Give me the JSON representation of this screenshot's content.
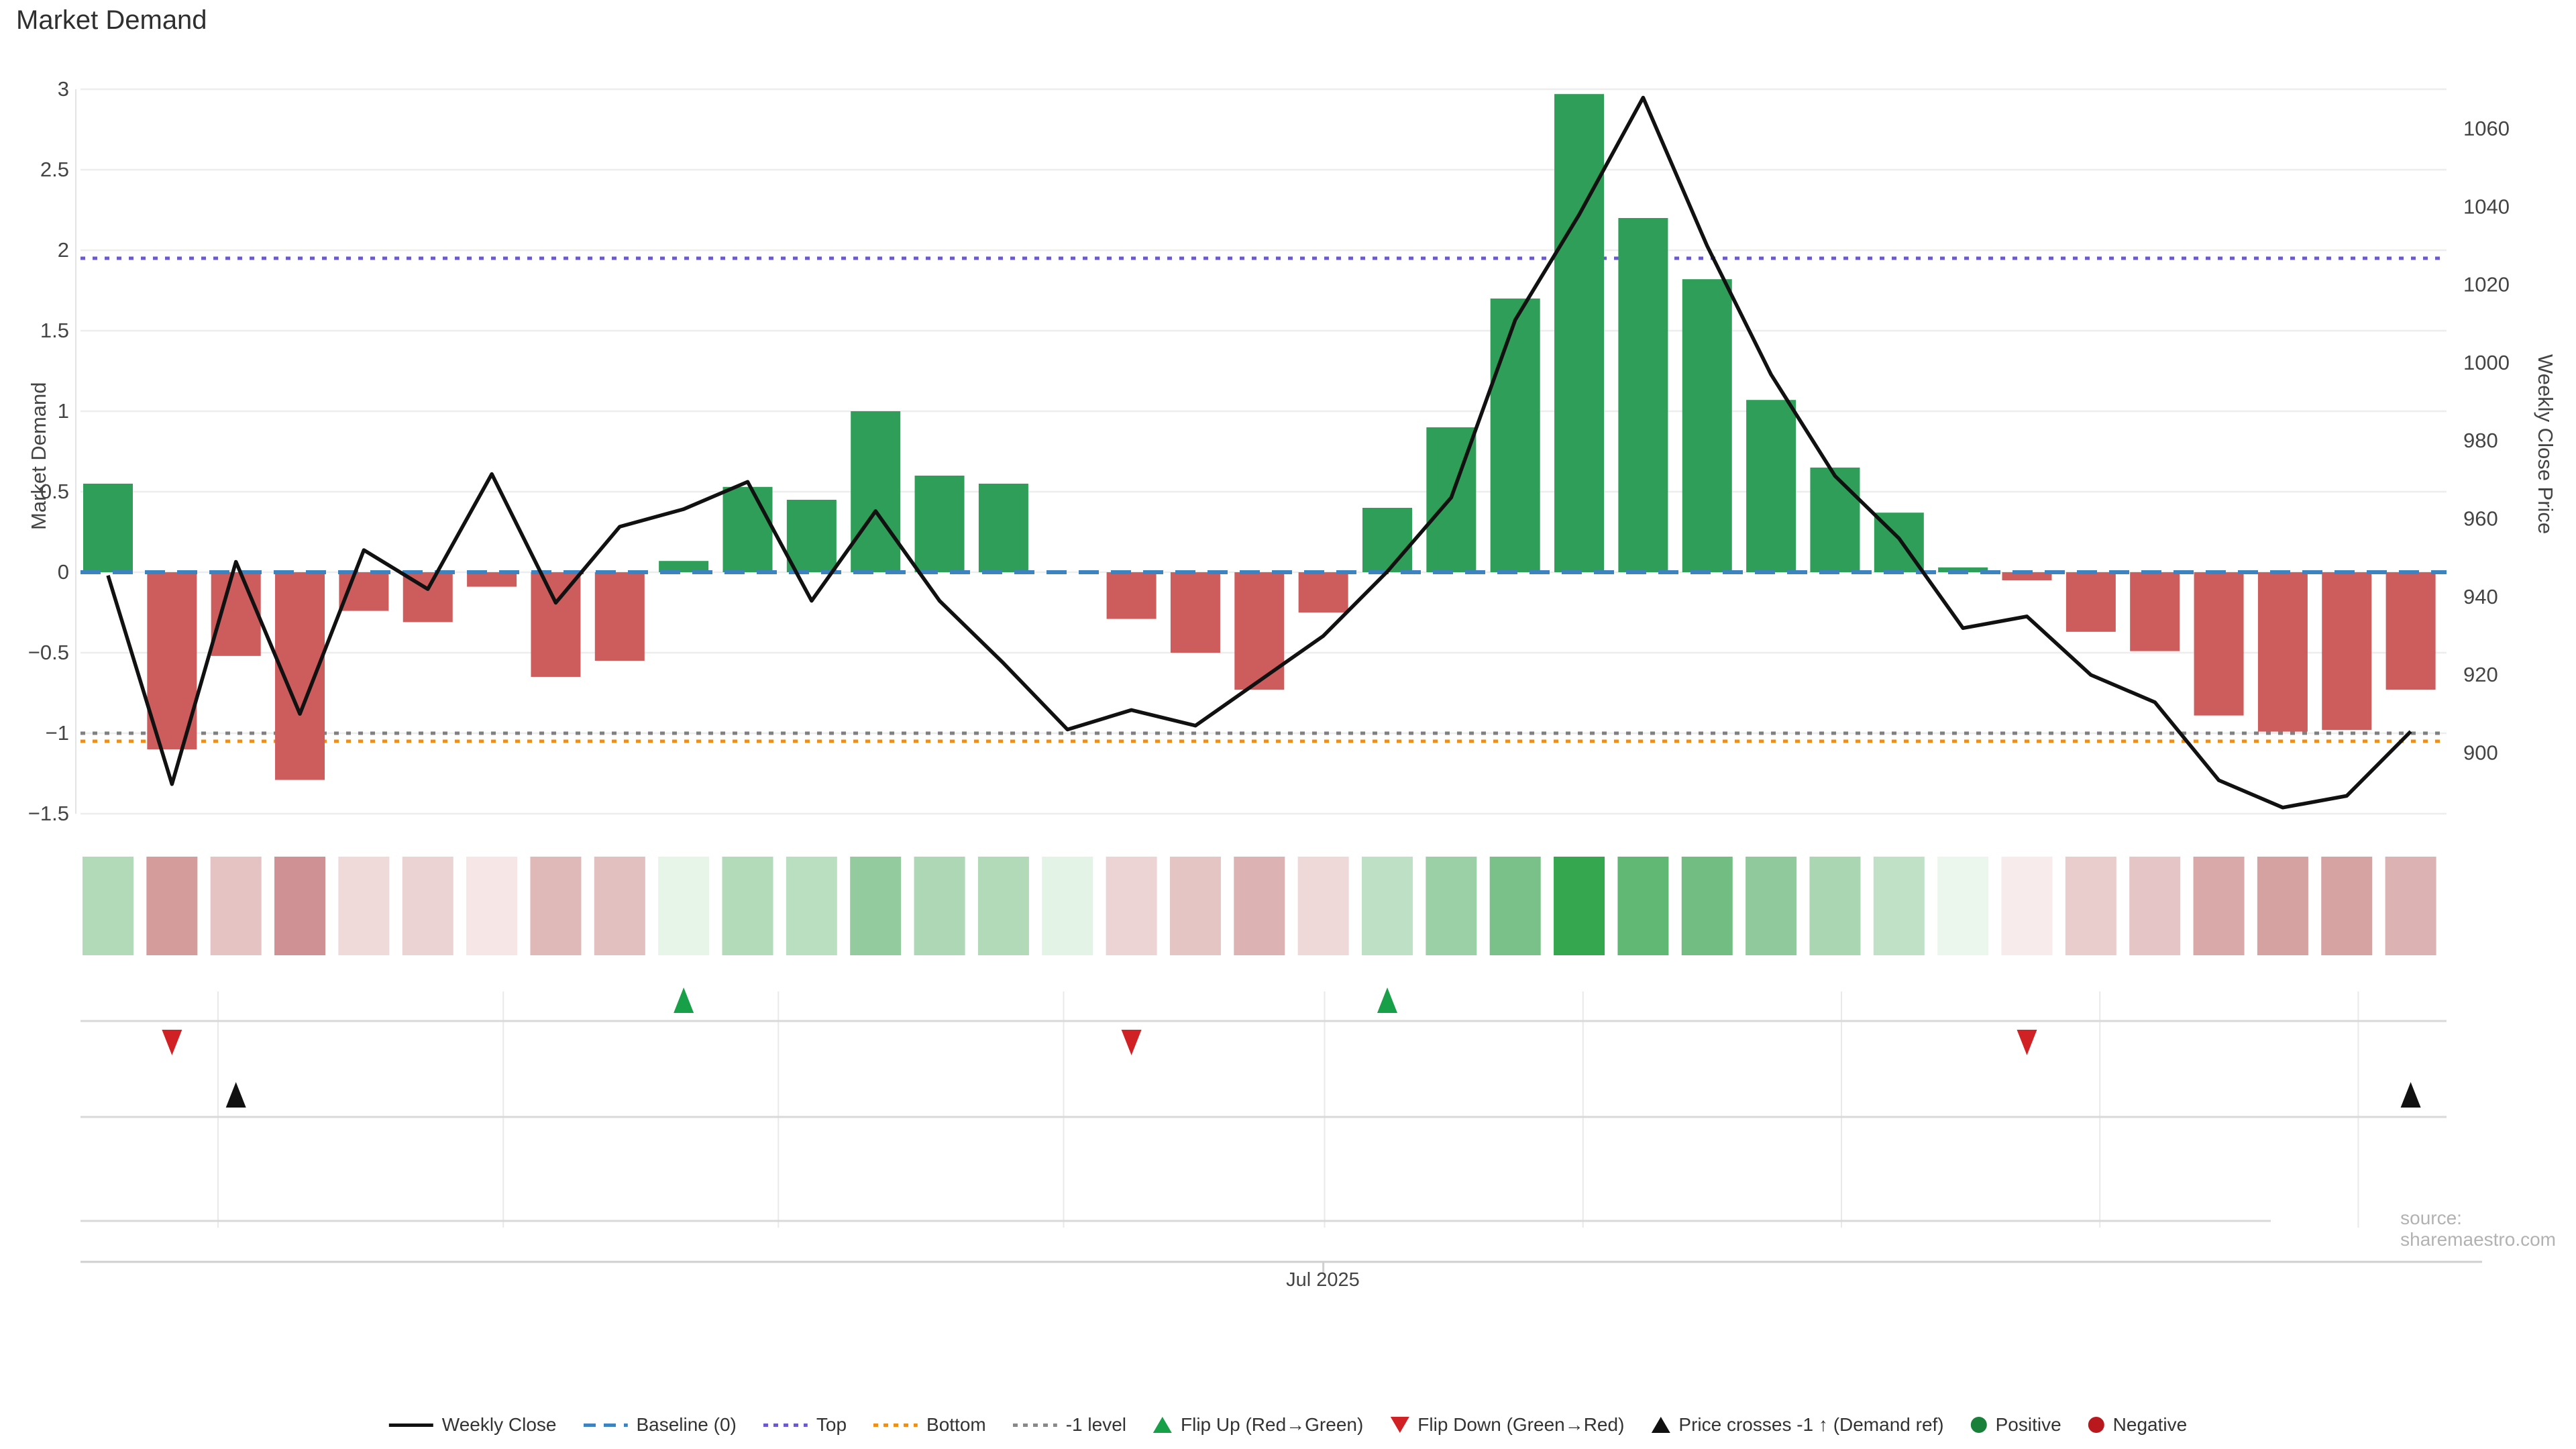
{
  "title": "Market Demand",
  "left_axis": {
    "title": "Market Demand",
    "tick_labels": [
      "3",
      "2.5",
      "2",
      "1.5",
      "1",
      "0.5",
      "0",
      "−0.5",
      "−1",
      "−1.5"
    ],
    "tick_values": [
      3,
      2.5,
      2,
      1.5,
      1,
      0.5,
      0,
      -0.5,
      -1,
      -1.5
    ]
  },
  "right_axis": {
    "title": "Weekly Close Price",
    "tick_labels": [
      "1060",
      "1040",
      "1020",
      "1000",
      "980",
      "960",
      "940",
      "920",
      "900"
    ],
    "tick_values": [
      1060,
      1040,
      1020,
      1000,
      980,
      960,
      940,
      920,
      900
    ]
  },
  "x_axis": {
    "tick_label": "Jul 2025"
  },
  "source": "source: sharemaestro.com",
  "colors": {
    "bar_positive": "#2f9e58",
    "bar_negative": "#cd5c5c",
    "weekly_close_line": "#111111",
    "baseline": "#3c83bf",
    "top_line": "#6a5acd",
    "bottom_line": "#ee9018",
    "minus1_line": "#808080",
    "gridline": "#ededed",
    "separator": "#d9d9d9",
    "flip_up_marker": "#18a048",
    "flip_down_marker": "#d02224",
    "price_cross_marker": "#111111",
    "positive_dot": "#188038",
    "negative_dot": "#b9191d"
  },
  "legend": {
    "items": [
      {
        "swatch": "line",
        "color": "#111111",
        "label": "Weekly Close"
      },
      {
        "swatch": "dash",
        "color": "#3c83bf",
        "label": "Baseline (0)"
      },
      {
        "swatch": "dot-line",
        "color": "#6a5acd",
        "label": "Top"
      },
      {
        "swatch": "dot-line",
        "color": "#ee9018",
        "label": "Bottom"
      },
      {
        "swatch": "dot-line",
        "color": "#888888",
        "label": "-1 level"
      },
      {
        "swatch": "tri-up",
        "color": "#18a048",
        "label": "Flip Up (Red→Green)"
      },
      {
        "swatch": "tri-down",
        "color": "#d02224",
        "label": "Flip Down (Green→Red)"
      },
      {
        "swatch": "tri-black",
        "color": "#111111",
        "label": "Price crosses -1 ↑ (Demand ref)"
      },
      {
        "swatch": "dot",
        "color": "#188038",
        "label": "Positive"
      },
      {
        "swatch": "dot",
        "color": "#b9191d",
        "label": "Negative"
      }
    ]
  },
  "chart_data": {
    "type": "bar+line",
    "n_weeks": 37,
    "title": "Market Demand",
    "left_ylabel": "Market Demand",
    "right_ylabel": "Weekly Close Price",
    "left_ylim": [
      -1.5,
      3
    ],
    "right_ylim": [
      884,
      1077
    ],
    "baseline": 0,
    "top_level": 1.95,
    "bottom_level": -1.05,
    "minus1_level": -1,
    "minus1_price_ref": 905,
    "demand_bars": [
      0.55,
      -1.1,
      -0.52,
      -1.29,
      -0.24,
      -0.31,
      -0.09,
      -0.65,
      -0.55,
      0.07,
      0.53,
      0.45,
      1.0,
      0.6,
      0.55,
      null,
      -0.29,
      -0.5,
      -0.73,
      -0.25,
      0.4,
      0.9,
      1.7,
      2.97,
      2.2,
      1.82,
      1.07,
      0.65,
      0.37,
      0.03,
      -0.05,
      -0.37,
      -0.49,
      -0.89,
      -0.99,
      -0.98,
      -0.73
    ],
    "weekly_close": [
      945.5,
      892,
      949,
      910,
      952,
      942,
      971.5,
      938.5,
      958,
      962.5,
      969.5,
      939,
      962,
      939,
      923,
      906,
      911,
      907,
      918.5,
      930,
      946.5,
      965.5,
      1011,
      1038,
      1068,
      1030,
      997,
      971,
      955,
      932,
      935,
      920,
      913,
      893,
      886,
      889,
      905.5
    ],
    "heatmap_colors": [
      "#b2dab8",
      "#d59c9c",
      "#e5c3c3",
      "#cf9193",
      "#efd9d9",
      "#ecd3d3",
      "#f6e6e6",
      "#dfb8b8",
      "#e3c0c0",
      "#e7f5e9",
      "#b3dbba",
      "#badec0",
      "#94cb9e",
      "#aed8b5",
      "#b2dab8",
      "#e3f3e6",
      "#edd4d4",
      "#e5c4c4",
      "#dcb2b2",
      "#efd8d8",
      "#bee0c4",
      "#9bcfa5",
      "#79c189",
      "#35a84f",
      "#61b874",
      "#72be82",
      "#90c99b",
      "#aad6b1",
      "#c0e1c6",
      "#ebf7ed",
      "#f8ebeb",
      "#e9cccc",
      "#e5c5c5",
      "#d9a8a8",
      "#d6a1a1",
      "#d6a2a2",
      "#dcb2b2"
    ],
    "flip_up_weeks": [
      10,
      21
    ],
    "flip_down_weeks": [
      2,
      17,
      31
    ],
    "price_cross_up_weeks": [
      3,
      37
    ],
    "x_tick": {
      "label": "Jul 2025",
      "week_position": 20.0
    },
    "month_gridline_weeks": [
      2.72,
      7.18,
      11.48,
      15.94,
      20.02,
      24.06,
      28.1,
      32.14,
      36.18
    ],
    "legend_position": "bottom-center",
    "grid": true
  }
}
